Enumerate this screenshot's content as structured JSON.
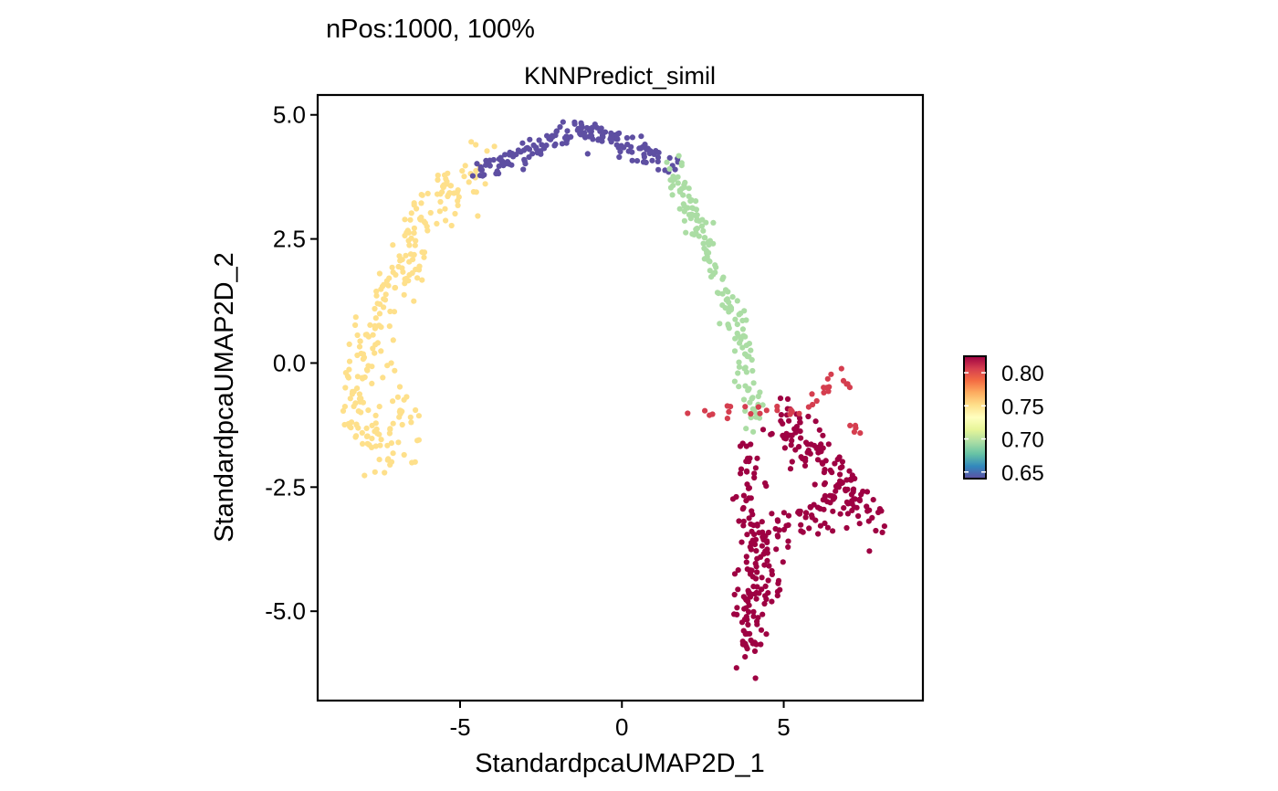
{
  "chart_data": {
    "type": "scatter",
    "header": "nPos:1000, 100%",
    "title": "KNNPredict_simil",
    "xlabel": "StandardpcaUMAP2D_1",
    "ylabel": "StandardpcaUMAP2D_2",
    "xlim": [
      -9.4,
      9.3
    ],
    "ylim": [
      -6.8,
      5.4
    ],
    "xticks": [
      {
        "value": -5,
        "label": "-5"
      },
      {
        "value": 0,
        "label": "0"
      },
      {
        "value": 5,
        "label": "5"
      }
    ],
    "yticks": [
      {
        "value": 5,
        "label": "5.0"
      },
      {
        "value": 2.5,
        "label": "2.5"
      },
      {
        "value": 0,
        "label": "0.0"
      },
      {
        "value": -2.5,
        "label": "-2.5"
      },
      {
        "value": -5,
        "label": "-5.0"
      }
    ],
    "grid": false,
    "colorbar": {
      "position": "right",
      "palette": "Spectral",
      "range": [
        0.64,
        0.825
      ],
      "ticks": [
        {
          "value": 0.8,
          "label": "0.80"
        },
        {
          "value": 0.75,
          "label": "0.75"
        },
        {
          "value": 0.7,
          "label": "0.70"
        },
        {
          "value": 0.65,
          "label": "0.65"
        }
      ],
      "colors": [
        "#5E4FA2",
        "#3288BD",
        "#66C2A5",
        "#ABDDA4",
        "#E6F598",
        "#FFFFBF",
        "#FEE08B",
        "#FDAE61",
        "#F46D43",
        "#D53E4F",
        "#9E0142"
      ]
    },
    "n_points": 1000,
    "clusters": [
      {
        "region": "left arc",
        "value": 0.745,
        "color": "#FEE08B",
        "count": 265,
        "path": [
          [
            -4.2,
            3.85
          ],
          [
            -5.3,
            3.5
          ],
          [
            -6.2,
            3.0
          ],
          [
            -6.6,
            2.0
          ],
          [
            -7.2,
            1.4
          ],
          [
            -7.8,
            0.4
          ],
          [
            -8.4,
            -0.6
          ],
          [
            -8.0,
            -1.4
          ],
          [
            -7.4,
            -1.8
          ],
          [
            -6.9,
            -1.9
          ],
          [
            -6.7,
            -1.3
          ],
          [
            -6.6,
            -0.4
          ]
        ],
        "spread": 0.38
      },
      {
        "region": "top arc",
        "value": 0.645,
        "color": "#5E4FA2",
        "count": 175,
        "path": [
          [
            -4.4,
            3.85
          ],
          [
            -3.5,
            4.1
          ],
          [
            -2.4,
            4.45
          ],
          [
            -1.3,
            4.72
          ],
          [
            -0.6,
            4.62
          ],
          [
            0.0,
            4.4
          ],
          [
            0.8,
            4.2
          ],
          [
            1.6,
            3.9
          ]
        ],
        "spread": 0.16
      },
      {
        "region": "right descending arc",
        "value": 0.705,
        "color": "#ABDDA4",
        "count": 160,
        "path": [
          [
            1.6,
            3.9
          ],
          [
            2.3,
            2.9
          ],
          [
            2.8,
            2.0
          ],
          [
            3.3,
            1.2
          ],
          [
            3.7,
            0.5
          ],
          [
            3.9,
            -0.4
          ],
          [
            4.1,
            -1.3
          ]
        ],
        "spread": 0.2
      },
      {
        "region": "lower right lobe",
        "value": 0.825,
        "color": "#9E0142",
        "count": 340,
        "path": [
          [
            4.0,
            -1.8
          ],
          [
            4.0,
            -3.2
          ],
          [
            3.9,
            -4.6
          ],
          [
            3.85,
            -5.9
          ],
          [
            4.8,
            -3.3
          ],
          [
            6.0,
            -3.1
          ],
          [
            7.0,
            -2.6
          ],
          [
            7.8,
            -3.2
          ],
          [
            4.9,
            -1.1
          ],
          [
            6.2,
            -2.1
          ]
        ],
        "spread": 0.36
      },
      {
        "region": "small right arm",
        "value": 0.79,
        "color": "#D53E4F",
        "count": 40,
        "path": [
          [
            1.9,
            -1.2
          ],
          [
            2.3,
            -1.0
          ],
          [
            5.8,
            -0.9
          ],
          [
            6.4,
            -0.35
          ],
          [
            6.9,
            -0.2
          ],
          [
            7.2,
            -1.5
          ]
        ],
        "spread": 0.1
      }
    ]
  }
}
